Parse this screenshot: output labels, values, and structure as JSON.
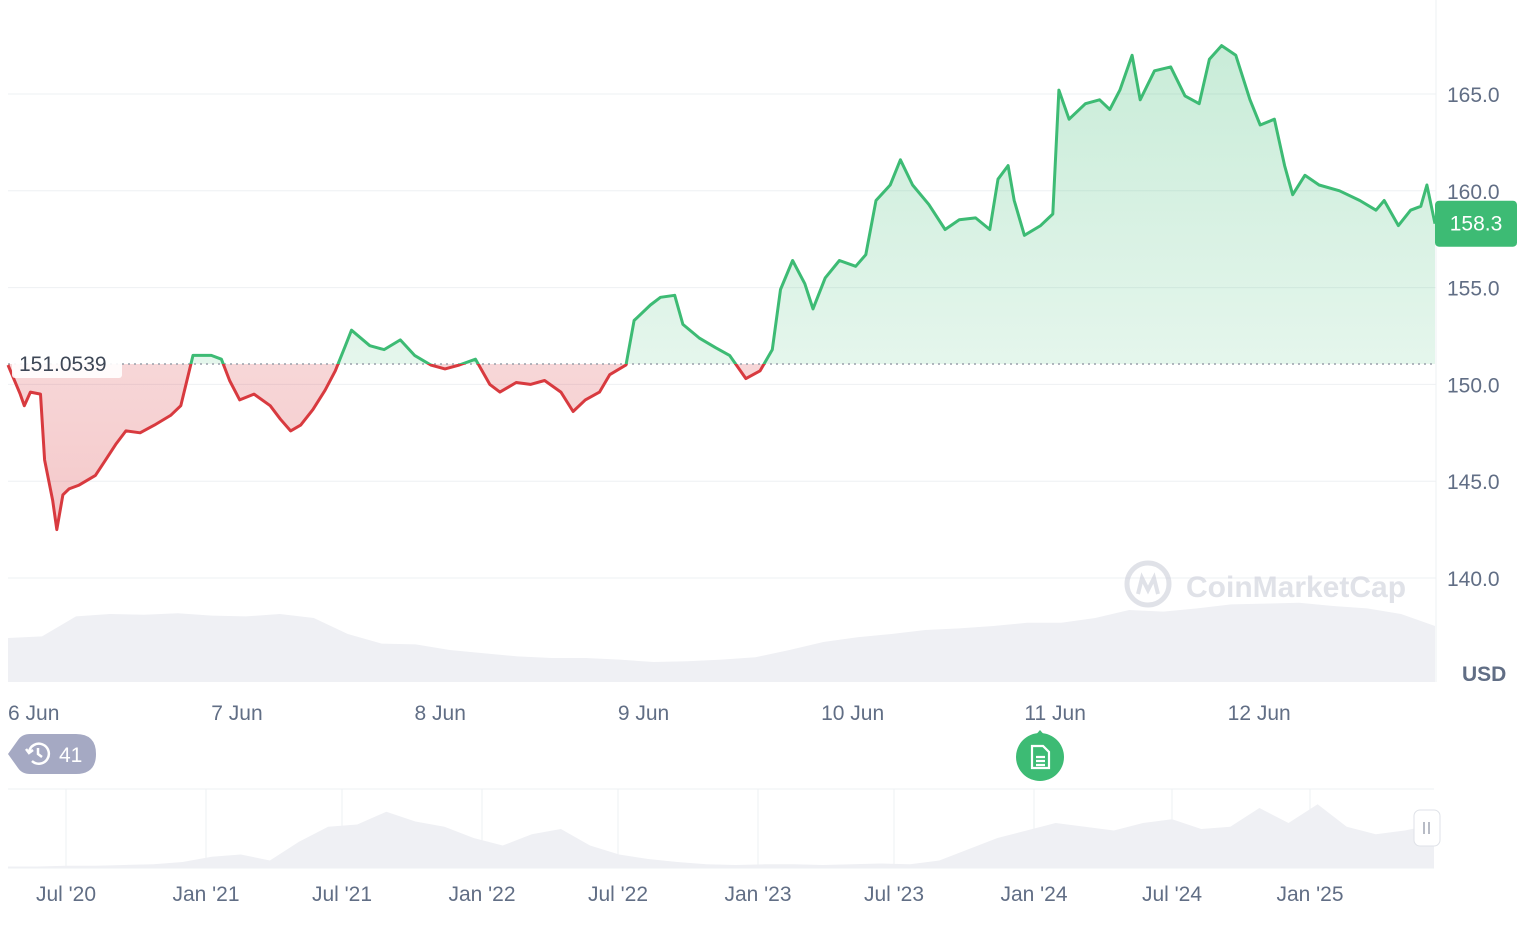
{
  "chart_data": {
    "type": "line",
    "currency": "USD",
    "x_unit": "days since 6 Jun 00:00",
    "x_ticks": [
      {
        "day": 0,
        "label": "6 Jun"
      },
      {
        "day": 1,
        "label": "7 Jun"
      },
      {
        "day": 2,
        "label": "8 Jun"
      },
      {
        "day": 3,
        "label": "9 Jun"
      },
      {
        "day": 4,
        "label": "10 Jun"
      },
      {
        "day": 5,
        "label": "11 Jun"
      },
      {
        "day": 6,
        "label": "12 Jun"
      }
    ],
    "y_ticks": [
      140.0,
      145.0,
      150.0,
      155.0,
      160.0,
      165.0
    ],
    "y_tick_labels": [
      "140.0",
      "145.0",
      "150.0",
      "155.0",
      "160.0",
      "165.0"
    ],
    "ylim": [
      139.3,
      169.8
    ],
    "xlim": [
      0,
      7.02
    ],
    "reference_price": 151.0539,
    "reference_label": "151.0539",
    "current_price": 158.3,
    "current_label": "158.3",
    "colors": {
      "up": "#3dbb74",
      "down": "#d83a3f",
      "grid": "#eef0f3",
      "volume": "#eff0f4"
    },
    "price": [
      [
        0.0,
        151.0
      ],
      [
        0.06,
        149.5
      ],
      [
        0.08,
        148.9
      ],
      [
        0.11,
        149.6
      ],
      [
        0.16,
        149.5
      ],
      [
        0.18,
        146.1
      ],
      [
        0.22,
        144.0
      ],
      [
        0.24,
        142.5
      ],
      [
        0.27,
        144.3
      ],
      [
        0.3,
        144.6
      ],
      [
        0.35,
        144.8
      ],
      [
        0.43,
        145.3
      ],
      [
        0.48,
        146.1
      ],
      [
        0.53,
        146.9
      ],
      [
        0.58,
        147.6
      ],
      [
        0.65,
        147.5
      ],
      [
        0.72,
        147.9
      ],
      [
        0.8,
        148.4
      ],
      [
        0.85,
        148.9
      ],
      [
        0.91,
        151.5
      ],
      [
        1.0,
        151.5
      ],
      [
        1.05,
        151.3
      ],
      [
        1.09,
        150.2
      ],
      [
        1.14,
        149.2
      ],
      [
        1.21,
        149.5
      ],
      [
        1.29,
        148.9
      ],
      [
        1.34,
        148.2
      ],
      [
        1.39,
        147.6
      ],
      [
        1.44,
        147.9
      ],
      [
        1.5,
        148.7
      ],
      [
        1.56,
        149.7
      ],
      [
        1.61,
        150.7
      ],
      [
        1.66,
        152.0
      ],
      [
        1.69,
        152.8
      ],
      [
        1.78,
        152.0
      ],
      [
        1.85,
        151.8
      ],
      [
        1.93,
        152.3
      ],
      [
        2.0,
        151.5
      ],
      [
        2.08,
        151.0
      ],
      [
        2.15,
        150.8
      ],
      [
        2.22,
        151.0
      ],
      [
        2.3,
        151.3
      ],
      [
        2.37,
        150.0
      ],
      [
        2.42,
        149.6
      ],
      [
        2.5,
        150.1
      ],
      [
        2.57,
        150.0
      ],
      [
        2.64,
        150.2
      ],
      [
        2.72,
        149.6
      ],
      [
        2.78,
        148.6
      ],
      [
        2.84,
        149.2
      ],
      [
        2.91,
        149.6
      ],
      [
        2.96,
        150.5
      ],
      [
        3.04,
        151.0
      ],
      [
        3.08,
        153.3
      ],
      [
        3.16,
        154.1
      ],
      [
        3.21,
        154.5
      ],
      [
        3.28,
        154.6
      ],
      [
        3.32,
        153.1
      ],
      [
        3.4,
        152.4
      ],
      [
        3.48,
        151.9
      ],
      [
        3.55,
        151.5
      ],
      [
        3.63,
        150.3
      ],
      [
        3.7,
        150.7
      ],
      [
        3.76,
        151.8
      ],
      [
        3.8,
        154.9
      ],
      [
        3.86,
        156.4
      ],
      [
        3.92,
        155.2
      ],
      [
        3.96,
        153.9
      ],
      [
        4.02,
        155.5
      ],
      [
        4.09,
        156.4
      ],
      [
        4.17,
        156.1
      ],
      [
        4.22,
        156.7
      ],
      [
        4.27,
        159.5
      ],
      [
        4.34,
        160.3
      ],
      [
        4.39,
        161.6
      ],
      [
        4.45,
        160.3
      ],
      [
        4.53,
        159.3
      ],
      [
        4.61,
        158.0
      ],
      [
        4.68,
        158.5
      ],
      [
        4.76,
        158.6
      ],
      [
        4.83,
        158.0
      ],
      [
        4.87,
        160.6
      ],
      [
        4.92,
        161.3
      ],
      [
        4.95,
        159.5
      ],
      [
        5.0,
        157.7
      ],
      [
        5.08,
        158.2
      ],
      [
        5.14,
        158.8
      ],
      [
        5.17,
        165.2
      ],
      [
        5.22,
        163.7
      ],
      [
        5.3,
        164.5
      ],
      [
        5.37,
        164.7
      ],
      [
        5.42,
        164.2
      ],
      [
        5.47,
        165.2
      ],
      [
        5.53,
        167.0
      ],
      [
        5.57,
        164.7
      ],
      [
        5.64,
        166.2
      ],
      [
        5.72,
        166.4
      ],
      [
        5.79,
        164.9
      ],
      [
        5.86,
        164.5
      ],
      [
        5.91,
        166.8
      ],
      [
        5.97,
        167.5
      ],
      [
        6.04,
        167.0
      ],
      [
        6.11,
        164.7
      ],
      [
        6.16,
        163.4
      ],
      [
        6.23,
        163.7
      ],
      [
        6.28,
        161.3
      ],
      [
        6.32,
        159.8
      ],
      [
        6.38,
        160.8
      ],
      [
        6.45,
        160.3
      ],
      [
        6.55,
        160.0
      ],
      [
        6.65,
        159.5
      ],
      [
        6.73,
        159.0
      ],
      [
        6.77,
        159.5
      ],
      [
        6.84,
        158.2
      ],
      [
        6.9,
        159.0
      ],
      [
        6.95,
        159.2
      ],
      [
        6.98,
        160.3
      ],
      [
        7.02,
        158.3
      ]
    ],
    "volume_relative": [
      0.55,
      0.57,
      0.82,
      0.85,
      0.84,
      0.86,
      0.83,
      0.82,
      0.85,
      0.8,
      0.6,
      0.48,
      0.47,
      0.4,
      0.36,
      0.32,
      0.3,
      0.3,
      0.28,
      0.25,
      0.26,
      0.28,
      0.31,
      0.4,
      0.5,
      0.56,
      0.6,
      0.65,
      0.67,
      0.7,
      0.74,
      0.74,
      0.8,
      0.9,
      0.88,
      0.92,
      0.97,
      0.98,
      0.99,
      0.95,
      0.92,
      0.85,
      0.7
    ],
    "navigator": {
      "labels": [
        "Jul '20",
        "Jan '21",
        "Jul '21",
        "Jan '22",
        "Jul '22",
        "Jan '23",
        "Jul '23",
        "Jan '24",
        "Jul '24",
        "Jan '25"
      ],
      "relative": [
        0.02,
        0.02,
        0.03,
        0.03,
        0.04,
        0.05,
        0.08,
        0.15,
        0.18,
        0.1,
        0.35,
        0.55,
        0.58,
        0.75,
        0.62,
        0.55,
        0.4,
        0.3,
        0.45,
        0.52,
        0.3,
        0.18,
        0.12,
        0.08,
        0.05,
        0.04,
        0.05,
        0.05,
        0.04,
        0.05,
        0.06,
        0.05,
        0.1,
        0.25,
        0.4,
        0.5,
        0.6,
        0.55,
        0.5,
        0.6,
        0.65,
        0.52,
        0.55,
        0.8,
        0.6,
        0.85,
        0.55,
        0.45,
        0.5,
        0.58
      ]
    }
  },
  "badge": {
    "count": "41"
  },
  "unit_label": "USD",
  "watermark": "CoinMarketCap"
}
